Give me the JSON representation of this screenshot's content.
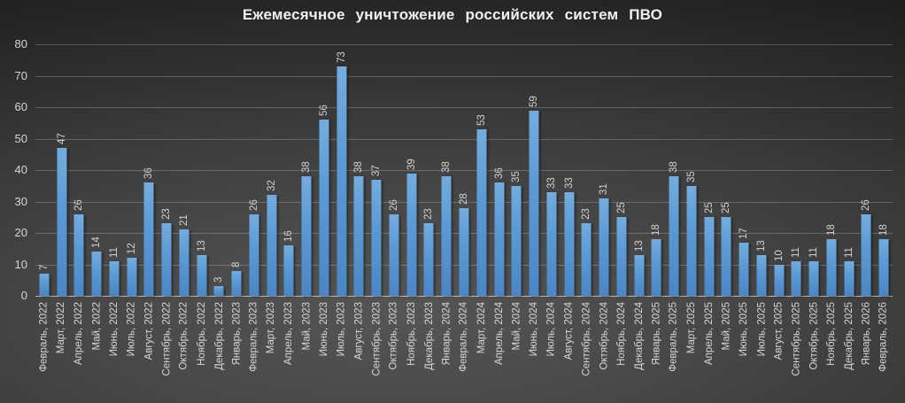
{
  "title": "Ежемесячное уничтожение российских систем ПВО",
  "colors": {
    "bar": "#5B9BD5",
    "bar_gradient_top": "#73ACDF",
    "bar_gradient_bottom": "#4A86C5",
    "background_center": "#555555",
    "background_edge": "#1b1b1b",
    "text": "#d6d6d6",
    "title_text": "#f1f1f1",
    "gridline": "rgba(255,255,255,0.22)"
  },
  "chart_data": {
    "type": "bar",
    "title": "Ежемесячное уничтожение российских систем ПВО",
    "xlabel": "",
    "ylabel": "",
    "ylim": [
      0,
      80
    ],
    "yticks": [
      0,
      10,
      20,
      30,
      40,
      50,
      60,
      70,
      80
    ],
    "grid": true,
    "legend": false,
    "label_rotation": 90,
    "categories": [
      "Февраль, 2022",
      "Март, 2022",
      "Апрель, 2022",
      "Май, 2022",
      "Июнь, 2022",
      "Июль, 2022",
      "Август, 2022",
      "Сентябрь, 2022",
      "Октябрь, 2022",
      "Ноябрь, 2022",
      "Декабрь, 2022",
      "Январь, 2023",
      "Февраль, 2023",
      "Март, 2023",
      "Апрель, 2023",
      "Май, 2023",
      "Июнь, 2023",
      "Июль, 2023",
      "Август, 2023",
      "Сентябрь, 2023",
      "Октябрь, 2023",
      "Ноябрь, 2023",
      "Декабрь, 2023",
      "Январь, 2024",
      "Февраль, 2024",
      "Март, 2024",
      "Апрель, 2024",
      "Май, 2024",
      "Июнь, 2024",
      "Июль, 2024",
      "Август, 2024",
      "Сентябрь, 2024",
      "Октябрь, 2024",
      "Ноябрь, 2024",
      "Декабрь, 2024",
      "Январь, 2025",
      "Февраль, 2025",
      "Март, 2025",
      "Апрель, 2025",
      "Май, 2025",
      "Июнь, 2025",
      "Июль, 2025",
      "Август, 2025",
      "Сентябрь, 2025",
      "Октябрь, 2025",
      "Ноябрь, 2025",
      "Декабрь, 2025",
      "Январь, 2026",
      "Февраль, 2026"
    ],
    "values": [
      7,
      47,
      26,
      14,
      11,
      12,
      36,
      23,
      21,
      13,
      3,
      8,
      26,
      32,
      16,
      38,
      56,
      73,
      38,
      37,
      26,
      39,
      23,
      38,
      28,
      53,
      36,
      35,
      59,
      33,
      33,
      23,
      31,
      25,
      13,
      18,
      38,
      35,
      25,
      25,
      17,
      13,
      10,
      11,
      11,
      18,
      11,
      26,
      18
    ]
  }
}
